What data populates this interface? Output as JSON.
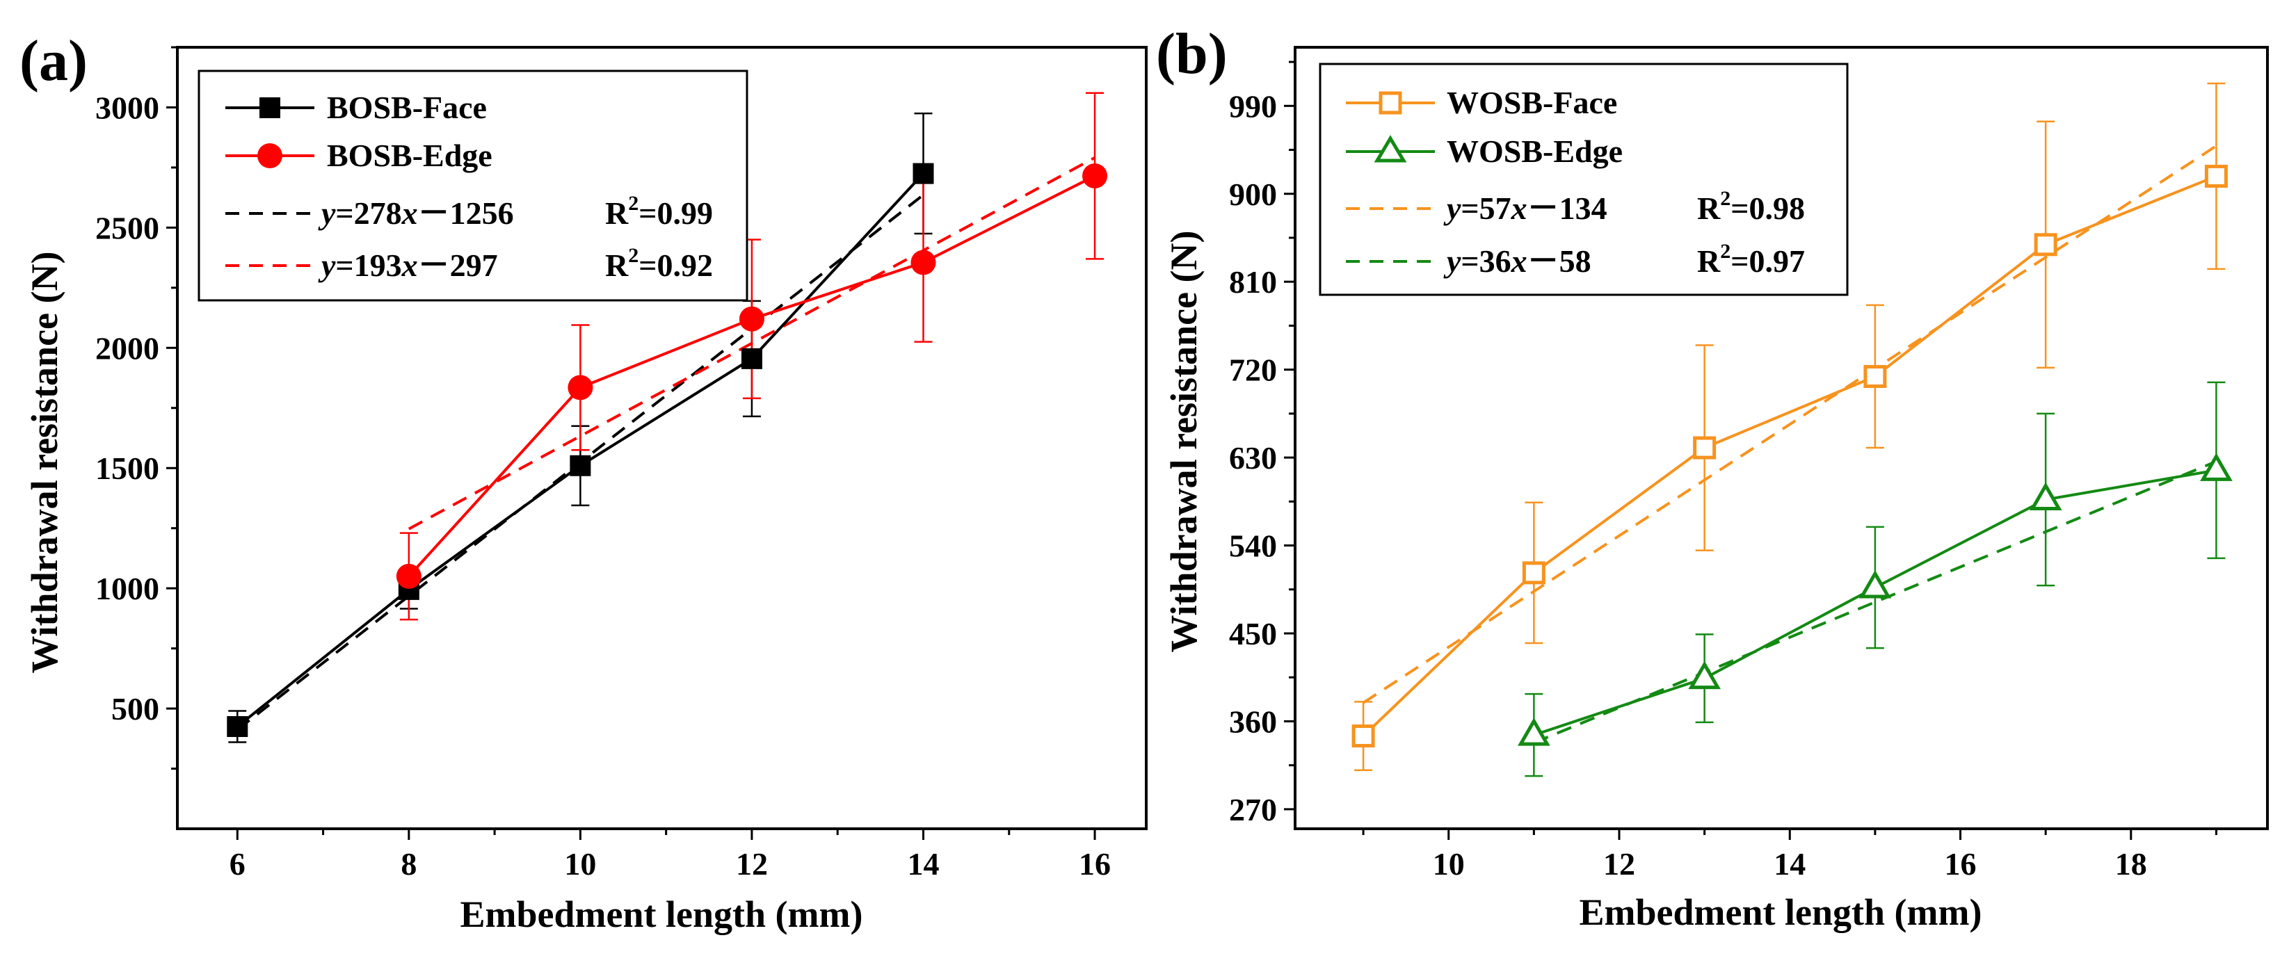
{
  "chart_data": [
    {
      "panel_label": "(a)",
      "type": "line",
      "xlabel": "Embedment length (mm)",
      "ylabel": "Withdrawal resistance (N)",
      "xlim": [
        5.3,
        16.6
      ],
      "ylim": [
        0,
        3250
      ],
      "xticks": [
        6,
        8,
        10,
        12,
        14,
        16
      ],
      "yticks": [
        500,
        1000,
        1500,
        2000,
        2500,
        3000
      ],
      "series": [
        {
          "name": "BOSB-Face",
          "color": "#000000",
          "marker": "square-filled",
          "x": [
            6,
            8,
            10,
            12,
            14
          ],
          "y": [
            425,
            995,
            1510,
            1955,
            2725
          ],
          "err": [
            65,
            80,
            165,
            240,
            250
          ]
        },
        {
          "name": "BOSB-Edge",
          "color": "#ff0000",
          "marker": "circle-filled",
          "x": [
            8,
            10,
            12,
            14,
            16
          ],
          "y": [
            1050,
            1835,
            2120,
            2355,
            2715
          ],
          "err": [
            180,
            260,
            330,
            330,
            345
          ]
        }
      ],
      "fits": [
        {
          "color": "#000000",
          "slope": 278,
          "intercept": -1256,
          "x_range": [
            6,
            14
          ],
          "eq_y": "y",
          "eq_eq": "=278",
          "eq_x": "x",
          "eq_rest": "－1256",
          "r2_label": "R",
          "r2_sup": "2",
          "r2_value": "=0.99"
        },
        {
          "color": "#ff0000",
          "slope": 193,
          "intercept": -297,
          "x_range": [
            8,
            16
          ],
          "eq_y": "y",
          "eq_eq": "=193",
          "eq_x": "x",
          "eq_rest": "－297",
          "r2_label": "R",
          "r2_sup": "2",
          "r2_value": "=0.92"
        }
      ],
      "legend_position": "top-left"
    },
    {
      "panel_label": "(b)",
      "type": "line",
      "xlabel": "Embedment length (mm)",
      "ylabel": "Withdrawal resistance (N)",
      "xlim": [
        8.2,
        19.6
      ],
      "ylim": [
        250,
        1050
      ],
      "xticks": [
        10,
        12,
        14,
        16,
        18
      ],
      "yticks": [
        270,
        360,
        450,
        540,
        630,
        720,
        810,
        900,
        990
      ],
      "series": [
        {
          "name": "WOSB-Face",
          "color": "#f7931e",
          "marker": "square-open",
          "x": [
            9,
            11,
            13,
            15,
            17,
            19
          ],
          "y": [
            345,
            512,
            640,
            713,
            848,
            918
          ],
          "err": [
            35,
            72,
            105,
            73,
            126,
            95
          ]
        },
        {
          "name": "WOSB-Edge",
          "color": "#138a13",
          "marker": "triangle-open",
          "x": [
            11,
            13,
            15,
            17,
            19
          ],
          "y": [
            346,
            404,
            497,
            587,
            617
          ],
          "err": [
            42,
            45,
            62,
            88,
            90
          ]
        }
      ],
      "fits": [
        {
          "color": "#f7931e",
          "slope": 57,
          "intercept": -134,
          "x_range": [
            9,
            19
          ],
          "eq_y": "y",
          "eq_eq": "=57",
          "eq_x": "x",
          "eq_rest": "－134",
          "r2_label": "R",
          "r2_sup": "2",
          "r2_value": "=0.98"
        },
        {
          "color": "#138a13",
          "slope": 36,
          "intercept": -58,
          "x_range": [
            11,
            19
          ],
          "eq_y": "y",
          "eq_eq": "=36",
          "eq_x": "x",
          "eq_rest": "－58",
          "r2_label": "R",
          "r2_sup": "2",
          "r2_value": "=0.97"
        }
      ],
      "legend_position": "top-left"
    }
  ]
}
